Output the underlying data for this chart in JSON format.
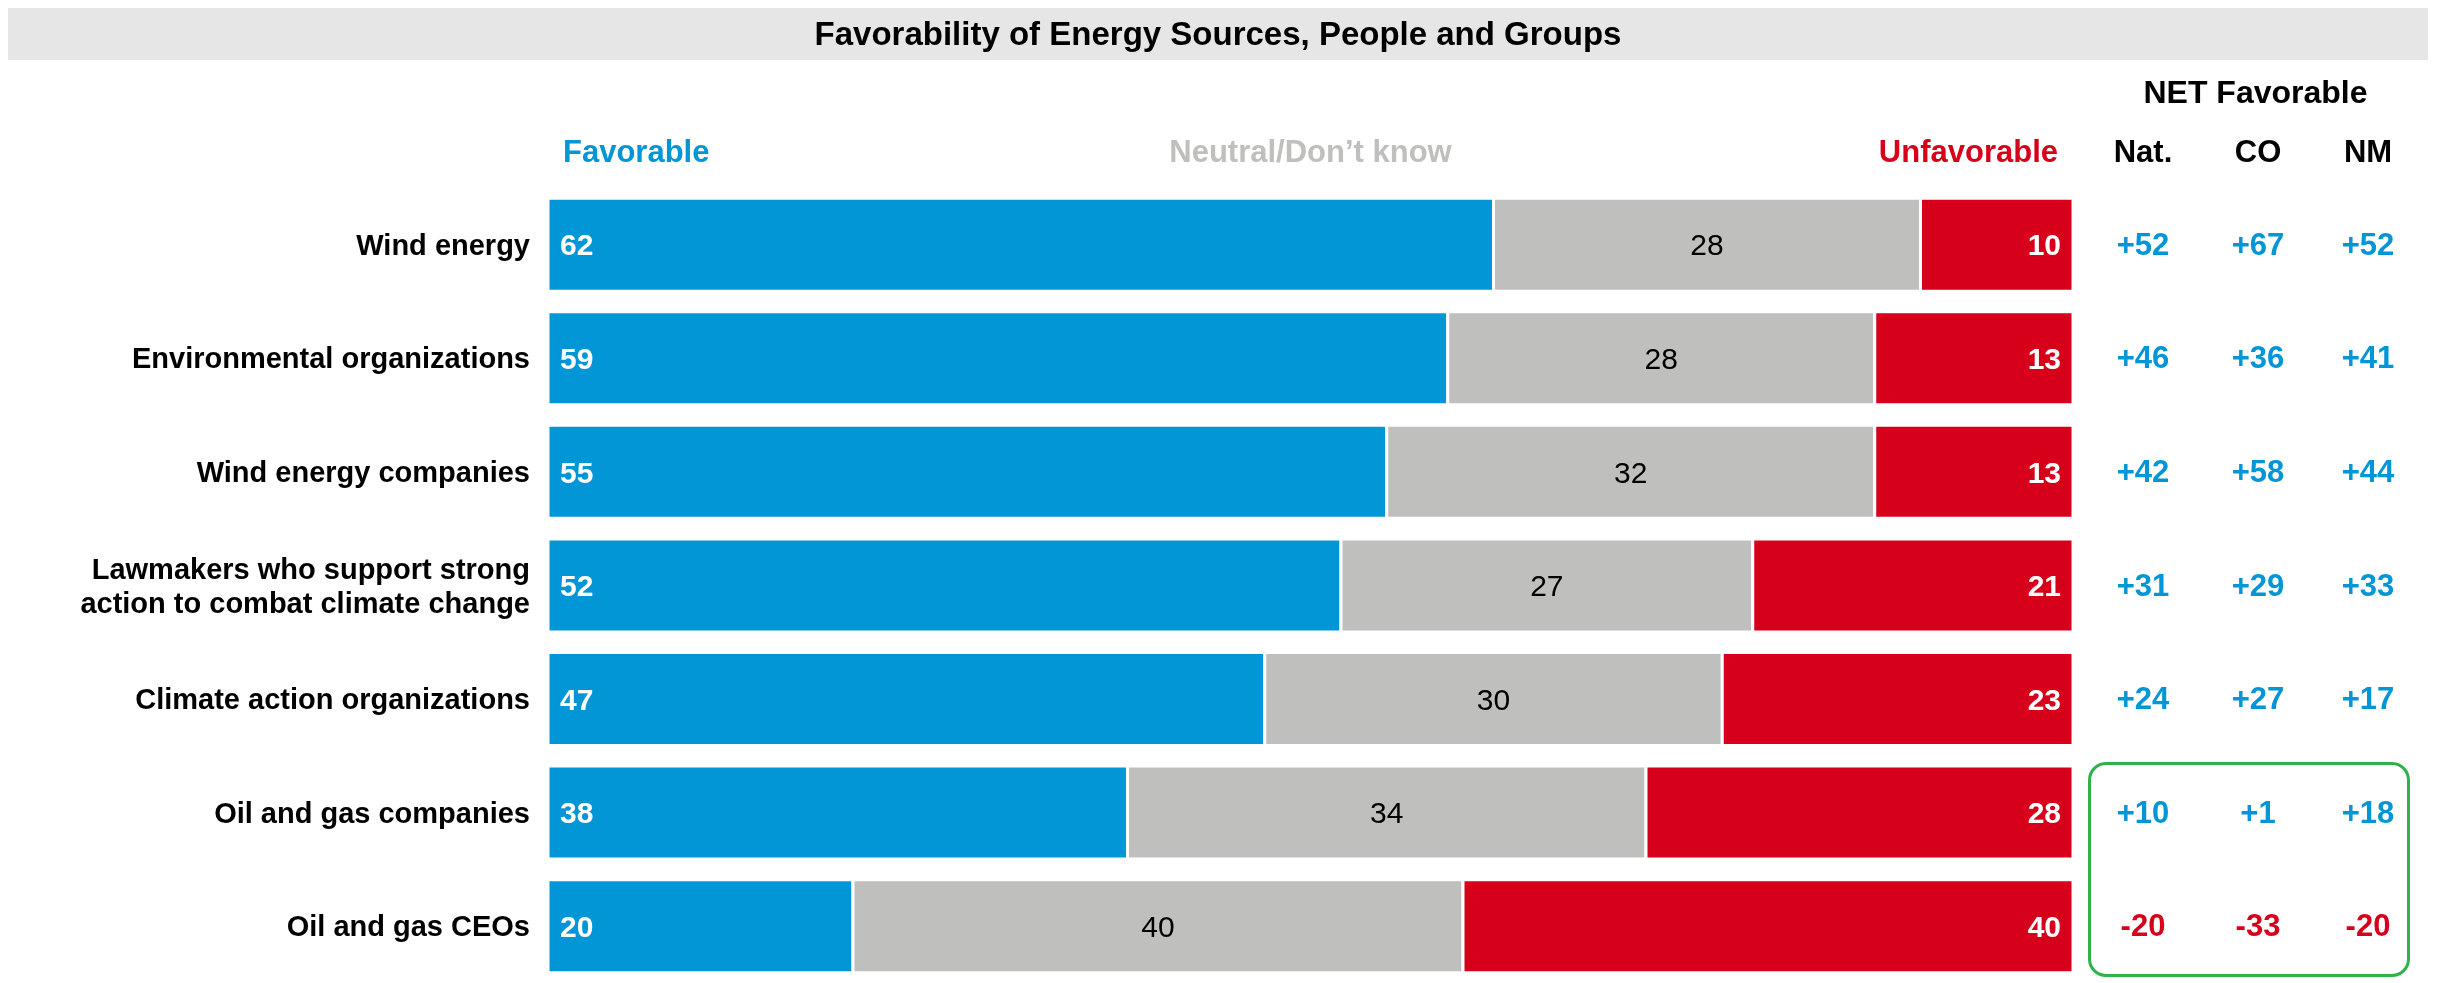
{
  "chart_data": {
    "type": "bar",
    "orientation": "horizontal",
    "stacked": true,
    "data_labels": true,
    "legend": "top",
    "title": "Favorability of Energy Sources, People and Groups",
    "categories": [
      "Wind energy",
      "Environmental organizations",
      "Wind energy companies",
      "Lawmakers who support strong action to combat climate change",
      "Climate action organizations",
      "Oil and gas companies",
      "Oil and gas CEOs"
    ],
    "series": [
      {
        "name": "Favorable",
        "color": "#0396d6",
        "values": [
          62,
          59,
          55,
          52,
          47,
          38,
          20
        ]
      },
      {
        "name": "Neutral/Don’t know",
        "color": "#bfbfbe",
        "values": [
          28,
          28,
          32,
          27,
          30,
          34,
          40
        ]
      },
      {
        "name": "Unfavorable",
        "color": "#d7001b",
        "values": [
          10,
          13,
          13,
          21,
          23,
          28,
          40
        ]
      }
    ],
    "annotations": [
      "NET Favorable",
      "Nat.",
      "CO",
      "NM",
      "+52",
      "+67",
      "+52",
      "+46",
      "+36",
      "+41",
      "+42",
      "+58",
      "+44",
      "+31",
      "+29",
      "+33",
      "+24",
      "+27",
      "+17",
      "+10",
      "+1",
      "+18",
      "-20",
      "-33",
      "-20"
    ]
  }
}
